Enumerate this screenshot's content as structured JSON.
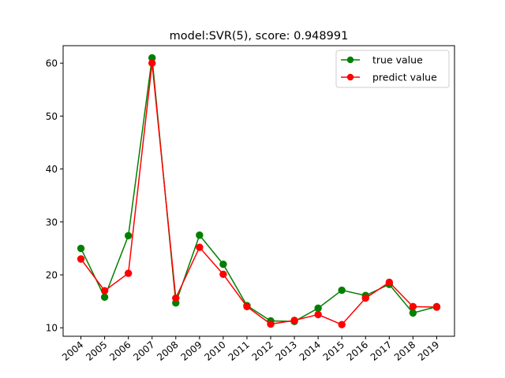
{
  "chart_data": {
    "type": "line",
    "title": "model:SVR(5), score: 0.948991",
    "xlabel": "",
    "ylabel": "",
    "categories": [
      "2004",
      "2005",
      "2006",
      "2007",
      "2008",
      "2009",
      "2010",
      "2011",
      "2012",
      "2013",
      "2014",
      "2015",
      "2016",
      "2017",
      "2018",
      "2019"
    ],
    "ylim": [
      8.4,
      63.3
    ],
    "yticks": [
      10,
      20,
      30,
      40,
      50,
      60
    ],
    "grid": false,
    "legend_position": "top-right",
    "series": [
      {
        "name": "true value",
        "color": "#008000",
        "marker": "circle",
        "values": [
          25.0,
          15.8,
          27.4,
          61.0,
          14.7,
          27.5,
          22.0,
          14.2,
          11.3,
          11.2,
          13.7,
          17.1,
          16.1,
          18.2,
          12.8,
          14.0
        ]
      },
      {
        "name": "predict value",
        "color": "#ff0000",
        "marker": "circle",
        "values": [
          23.0,
          17.0,
          20.3,
          60.0,
          15.6,
          25.2,
          20.1,
          14.0,
          10.7,
          11.4,
          12.5,
          10.6,
          15.6,
          18.6,
          14.0,
          13.9
        ]
      }
    ]
  }
}
